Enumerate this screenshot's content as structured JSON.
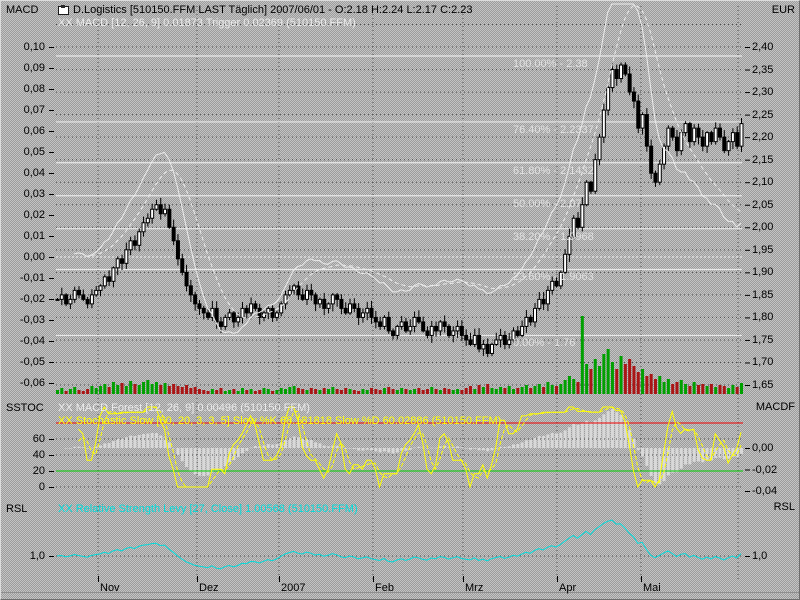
{
  "header": {
    "title": "D.Logistics [510150.FFM LAST Täglich] 2007/06/01 - O:2.18 H:2.24 L:2.17 C:2.23"
  },
  "panels": {
    "main": {
      "left_label": "MACD",
      "right_label": "EUR",
      "indicator_label": "XX MACD [12, 26, 9] 0.01873 Trigger 0.02369 (510150.FFM)"
    },
    "stoch": {
      "left_label": "SSTOC",
      "right_label": "MACDF",
      "forest_label": "XX MACD Forest [12, 26, 9] 0.00496 (510150.FFM)",
      "stoch_label": "XX Stochastic Slow [80, 20, 3, 3, 5] Slow %K 68.181818 Slow %D 60.02886 (510150.FFM)"
    },
    "rsl": {
      "left_label": "RSL",
      "right_label": "RSL",
      "indicator_label": "XX Relative Strength Levy [27, Close] 1.00568 (510150.FFM)"
    }
  },
  "axes": {
    "macd_ticks": [
      "0,10",
      "0,09",
      "0,08",
      "0,07",
      "0,06",
      "0,05",
      "0,04",
      "0,03",
      "0,02",
      "0,01",
      "0,00",
      "-0,01",
      "-0,02",
      "-0,03",
      "-0,04",
      "-0,05",
      "-0,06"
    ],
    "price_ticks": [
      "2,40",
      "2,35",
      "2,30",
      "2,25",
      "2,20",
      "2,15",
      "2,10",
      "2,05",
      "2,00",
      "1,95",
      "1,90",
      "1,85",
      "1,80",
      "1,75",
      "1,70",
      "1,65"
    ],
    "months": [
      "Nov",
      "Dez",
      "2007",
      "Feb",
      "Mrz",
      "Apr",
      "Mai"
    ]
  },
  "colors": {
    "background_dither": [
      "#c4c4c4",
      "#9c9c9c"
    ],
    "grid_dots": "#4a4a4a",
    "candle_up": "#ffffff",
    "candle_down": "#000000",
    "macd_line": "#ececec",
    "zero_line": "#f2f2f2",
    "fib_line": "#e9e9e9",
    "fib_text": "#e2e2e2",
    "volume_up": "#00a000",
    "volume_down": "#aa1515",
    "forest_bar": "#d9d9d9",
    "stoch_k": "#ffff00",
    "overbought_line": "#f00000",
    "oversold_line": "#00cc00",
    "rsl_line": "#00dcdc",
    "axis_text": "#000000"
  },
  "chart_data": [
    {
      "type": "candlestick",
      "name": "price-panel",
      "symbol": "D.Logistics 510150.FFM",
      "ohlc_last": {
        "date": "2007/06/01",
        "open": 2.18,
        "high": 2.24,
        "low": 2.17,
        "close": 2.23
      },
      "price_axis": {
        "unit": "EUR",
        "side": "right",
        "min": 1.65,
        "max": 2.4,
        "step": 0.05
      },
      "indicator_axis": {
        "name": "MACD",
        "side": "left",
        "min": -0.06,
        "max": 0.1,
        "step": 0.01
      },
      "macd": {
        "params": [
          12,
          26,
          9
        ],
        "value": 0.01873,
        "trigger": 0.02369
      },
      "x_axis_months": [
        "Nov",
        "Dez",
        "2007",
        "Feb",
        "Mrz",
        "Apr",
        "Mai"
      ],
      "closes": [
        1.84,
        1.85,
        1.83,
        1.84,
        1.86,
        1.85,
        1.84,
        1.83,
        1.85,
        1.86,
        1.87,
        1.89,
        1.88,
        1.91,
        1.93,
        1.92,
        1.95,
        1.97,
        1.96,
        1.99,
        2.01,
        2.02,
        2.04,
        2.05,
        2.03,
        2.04,
        2.0,
        1.97,
        1.93,
        1.9,
        1.87,
        1.85,
        1.83,
        1.82,
        1.81,
        1.8,
        1.82,
        1.79,
        1.78,
        1.8,
        1.81,
        1.79,
        1.8,
        1.82,
        1.81,
        1.83,
        1.82,
        1.8,
        1.81,
        1.82,
        1.8,
        1.81,
        1.83,
        1.85,
        1.86,
        1.87,
        1.85,
        1.84,
        1.86,
        1.85,
        1.83,
        1.84,
        1.82,
        1.83,
        1.85,
        1.84,
        1.82,
        1.81,
        1.83,
        1.82,
        1.8,
        1.81,
        1.82,
        1.8,
        1.79,
        1.78,
        1.8,
        1.77,
        1.76,
        1.78,
        1.79,
        1.77,
        1.78,
        1.8,
        1.79,
        1.77,
        1.76,
        1.78,
        1.77,
        1.79,
        1.78,
        1.76,
        1.77,
        1.78,
        1.76,
        1.75,
        1.74,
        1.76,
        1.73,
        1.74,
        1.72,
        1.74,
        1.75,
        1.76,
        1.74,
        1.75,
        1.77,
        1.76,
        1.78,
        1.8,
        1.79,
        1.82,
        1.84,
        1.83,
        1.86,
        1.88,
        1.87,
        1.9,
        1.94,
        1.98,
        2.02,
        2.0,
        2.05,
        2.1,
        2.08,
        2.15,
        2.2,
        2.26,
        2.31,
        2.35,
        2.33,
        2.36,
        2.34,
        2.3,
        2.28,
        2.22,
        2.25,
        2.18,
        2.12,
        2.1,
        2.14,
        2.18,
        2.22,
        2.2,
        2.17,
        2.21,
        2.23,
        2.19,
        2.22,
        2.2,
        2.18,
        2.21,
        2.19,
        2.22,
        2.2,
        2.17,
        2.19,
        2.21,
        2.18,
        2.23
      ],
      "volume": [
        4,
        6,
        3,
        5,
        7,
        4,
        3,
        5,
        8,
        6,
        8,
        10,
        7,
        12,
        9,
        11,
        8,
        13,
        10,
        9,
        12,
        14,
        10,
        12,
        9,
        11,
        8,
        10,
        8,
        7,
        9,
        6,
        7,
        5,
        4,
        3,
        5,
        4,
        6,
        3,
        4,
        5,
        3,
        6,
        4,
        5,
        3,
        4,
        6,
        5,
        3,
        4,
        6,
        5,
        7,
        8,
        6,
        5,
        4,
        6,
        5,
        4,
        6,
        5,
        7,
        5,
        4,
        6,
        5,
        4,
        3,
        5,
        4,
        6,
        5,
        4,
        6,
        7,
        5,
        4,
        6,
        5,
        4,
        5,
        6,
        4,
        5,
        7,
        5,
        4,
        6,
        5,
        4,
        5,
        4,
        6,
        8,
        5,
        9,
        7,
        10,
        6,
        5,
        7,
        6,
        8,
        5,
        6,
        7,
        9,
        6,
        8,
        10,
        7,
        12,
        9,
        8,
        10,
        14,
        18,
        15,
        12,
        78,
        30,
        25,
        35,
        28,
        40,
        45,
        32,
        25,
        38,
        30,
        35,
        28,
        22,
        25,
        18,
        20,
        15,
        18,
        12,
        15,
        10,
        12,
        14,
        10,
        8,
        12,
        9,
        10,
        8,
        10,
        7,
        9,
        8,
        6,
        9,
        7,
        11
      ],
      "overlays": {
        "fibonacci": [
          {
            "label": "100.00% - 2.38",
            "value": 2.38
          },
          {
            "label": "76.40% - 2.2337",
            "value": 2.2337
          },
          {
            "label": "61.80% - 2.1432",
            "value": 2.1432
          },
          {
            "label": "50.00% - 2.07",
            "value": 2.07
          },
          {
            "label": "38.20% - 1.9968",
            "value": 1.9968
          },
          {
            "label": "23.60% - 1.9063",
            "value": 1.9063
          },
          {
            "label": "0.00% - 1.76",
            "value": 1.76
          }
        ]
      }
    },
    {
      "type": "oscillator",
      "name": "stochastic-panel",
      "stochastic": {
        "params": [
          80,
          20,
          3,
          3,
          5
        ],
        "slow_k": 68.181818,
        "slow_d": 60.02886
      },
      "macd_forest": {
        "params": [
          12,
          26,
          9
        ],
        "value": 0.00496
      },
      "levels": {
        "overbought": 80,
        "oversold": 20
      },
      "left_ticks": [
        "60",
        "40",
        "20",
        "0"
      ],
      "left_tick_values": [
        60,
        40,
        20,
        0
      ],
      "right_ticks": [
        "0,00",
        "-0,02",
        "-0,04"
      ],
      "right_tick_values": [
        0,
        -0.02,
        -0.04
      ]
    },
    {
      "type": "line",
      "name": "rsl-panel",
      "rsl": {
        "params": "27, Close",
        "value": 1.00568
      },
      "baseline": 1.0,
      "left_tick": "1,0",
      "right_tick": "1,0"
    }
  ]
}
